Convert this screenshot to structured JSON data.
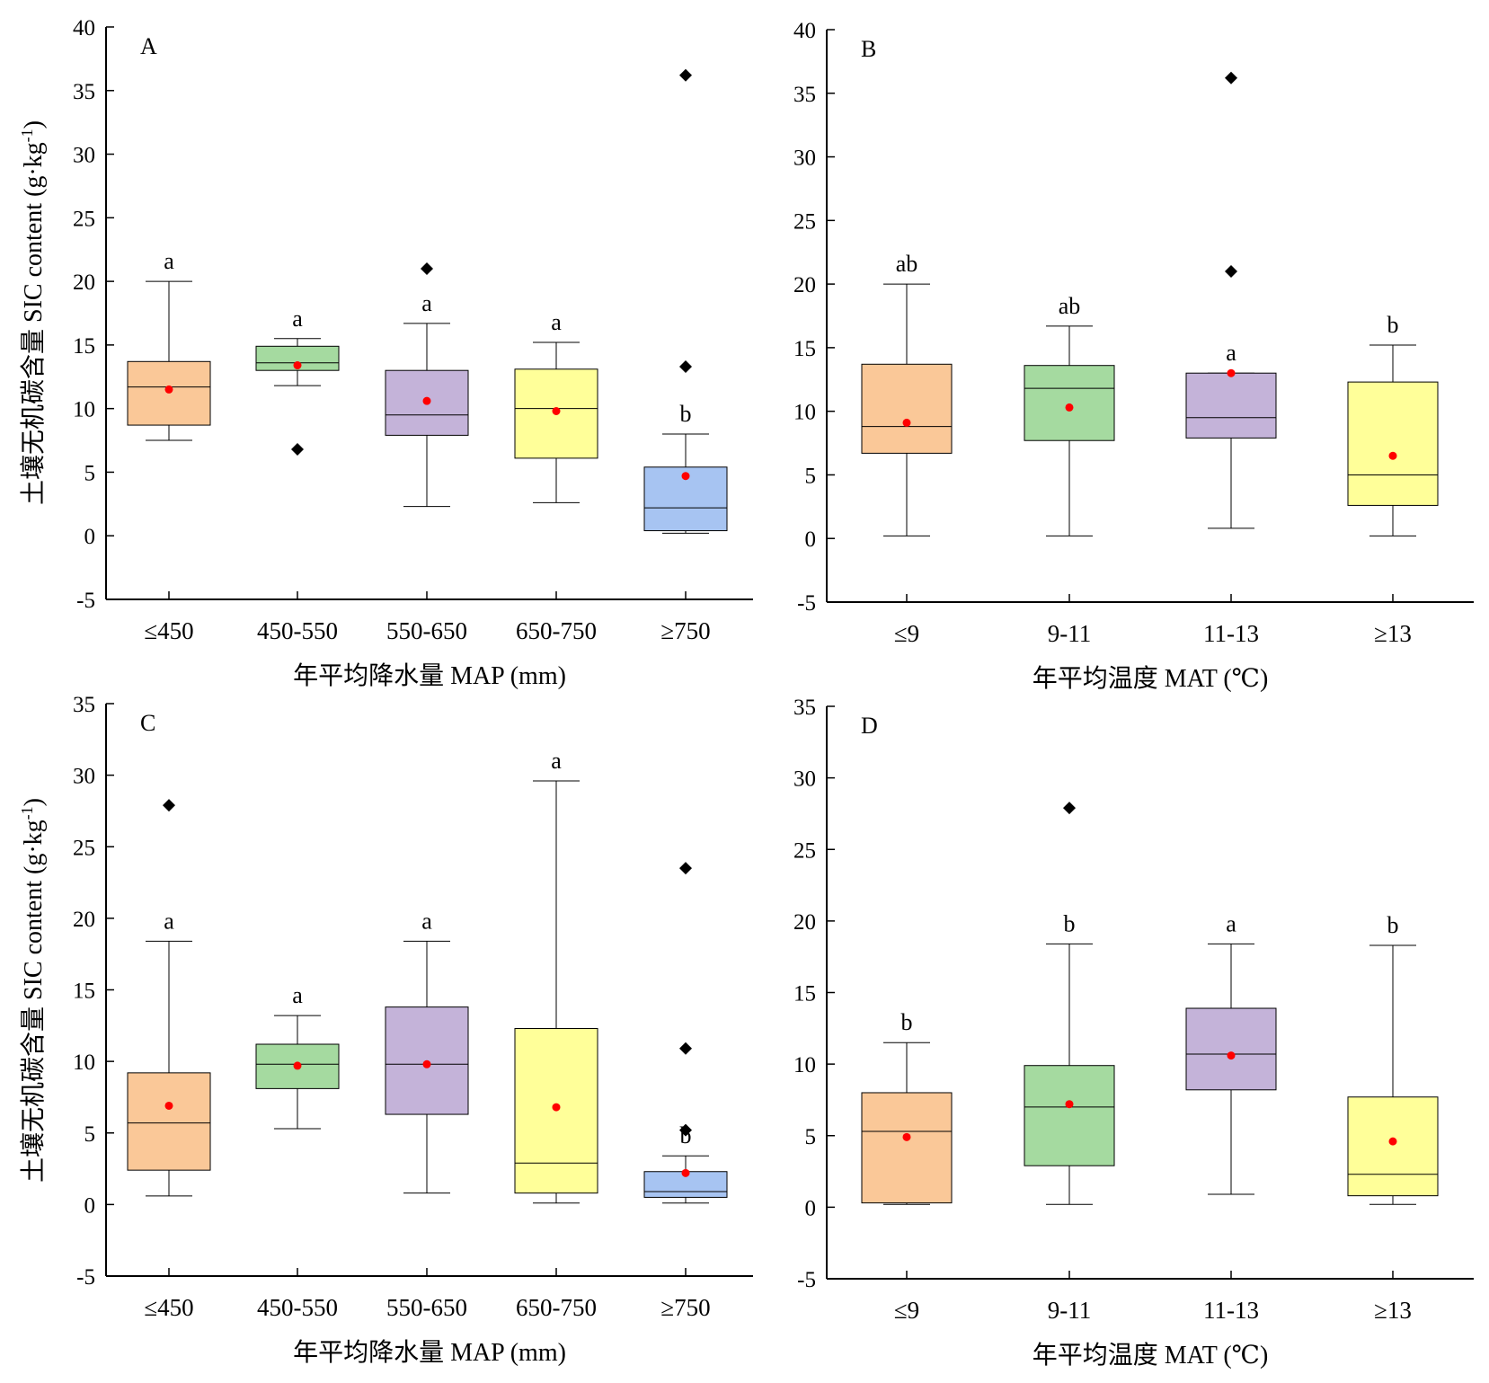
{
  "figure": {
    "y_axis_label": "土壤无机碳含量 SIC content (g·kg",
    "y_axis_label_sup": "-1",
    "y_axis_label_end": ")"
  },
  "chart_data": [
    {
      "type": "box",
      "panel_label": "A",
      "xlabel": "年平均降水量 MAP (mm)",
      "ylim": [
        -5,
        40
      ],
      "yticks": [
        -5,
        0,
        5,
        10,
        15,
        20,
        25,
        30,
        35,
        40
      ],
      "categories": [
        "≤450",
        "450-550",
        "550-650",
        "650-750",
        "≥750"
      ],
      "boxes": [
        {
          "min": 7.5,
          "q1": 8.7,
          "median": 11.7,
          "q3": 13.7,
          "max": 20.0,
          "mean": 11.5,
          "outliers": [],
          "letter": "a",
          "color": "#FAC898"
        },
        {
          "min": 11.8,
          "q1": 13.0,
          "median": 13.6,
          "q3": 14.9,
          "max": 15.5,
          "mean": 13.4,
          "outliers": [
            6.8
          ],
          "letter": "a",
          "color": "#A5DAA0"
        },
        {
          "min": 2.3,
          "q1": 7.9,
          "median": 9.5,
          "q3": 13.0,
          "max": 16.7,
          "mean": 10.6,
          "outliers": [
            21.0
          ],
          "letter": "a",
          "color": "#C4B3D9"
        },
        {
          "min": 2.6,
          "q1": 6.1,
          "median": 10.0,
          "q3": 13.1,
          "max": 15.2,
          "mean": 9.8,
          "outliers": [],
          "letter": "a",
          "color": "#FFFF99"
        },
        {
          "min": 0.2,
          "q1": 0.4,
          "median": 2.2,
          "q3": 5.4,
          "max": 8.0,
          "mean": 4.7,
          "outliers": [
            13.3,
            36.2
          ],
          "letter": "b",
          "color": "#A7C4F2"
        }
      ]
    },
    {
      "type": "box",
      "panel_label": "B",
      "xlabel": "年平均温度 MAT (℃)",
      "ylim": [
        -5,
        40
      ],
      "yticks": [
        -5,
        0,
        5,
        10,
        15,
        20,
        25,
        30,
        35,
        40
      ],
      "categories": [
        "≤9",
        "9-11",
        "11-13",
        "≥13"
      ],
      "boxes": [
        {
          "min": 0.2,
          "q1": 6.7,
          "median": 8.8,
          "q3": 13.7,
          "max": 20.0,
          "mean": 9.1,
          "outliers": [],
          "letter": "ab",
          "color": "#FAC898"
        },
        {
          "min": 0.2,
          "q1": 7.7,
          "median": 11.8,
          "q3": 13.6,
          "max": 16.7,
          "mean": 10.3,
          "outliers": [],
          "letter": "ab",
          "color": "#A5DAA0"
        },
        {
          "min": 0.8,
          "q1": 7.9,
          "median": 9.5,
          "q3": 13.0,
          "max": 13.0,
          "mean": 13.0,
          "outliers": [
            21.0,
            36.2
          ],
          "letter": "a",
          "color": "#C4B3D9"
        },
        {
          "min": 0.2,
          "q1": 2.6,
          "median": 5.0,
          "q3": 12.3,
          "max": 15.2,
          "mean": 6.5,
          "outliers": [],
          "letter": "b",
          "color": "#FFFF99"
        }
      ]
    },
    {
      "type": "box",
      "panel_label": "C",
      "xlabel": "年平均降水量 MAP (mm)",
      "ylim": [
        -5,
        35
      ],
      "yticks": [
        -5,
        0,
        5,
        10,
        15,
        20,
        25,
        30,
        35
      ],
      "categories": [
        "≤450",
        "450-550",
        "550-650",
        "650-750",
        "≥750"
      ],
      "boxes": [
        {
          "min": 0.6,
          "q1": 2.4,
          "median": 5.7,
          "q3": 9.2,
          "max": 18.4,
          "mean": 6.9,
          "outliers": [
            27.9
          ],
          "letter": "a",
          "color": "#FAC898"
        },
        {
          "min": 5.3,
          "q1": 8.1,
          "median": 9.8,
          "q3": 11.2,
          "max": 13.2,
          "mean": 9.7,
          "outliers": [],
          "letter": "a",
          "color": "#A5DAA0"
        },
        {
          "min": 0.8,
          "q1": 6.3,
          "median": 9.8,
          "q3": 13.8,
          "max": 18.4,
          "mean": 9.8,
          "outliers": [],
          "letter": "a",
          "color": "#C4B3D9"
        },
        {
          "min": 0.1,
          "q1": 0.8,
          "median": 2.9,
          "q3": 12.3,
          "max": 29.6,
          "mean": 6.8,
          "outliers": [],
          "letter": "a",
          "color": "#FFFF99"
        },
        {
          "min": 0.1,
          "q1": 0.5,
          "median": 0.9,
          "q3": 2.3,
          "max": 3.4,
          "mean": 2.2,
          "outliers": [
            5.2,
            10.9,
            23.5
          ],
          "letter": "b",
          "color": "#A7C4F2"
        }
      ]
    },
    {
      "type": "box",
      "panel_label": "D",
      "xlabel": "年平均温度 MAT (℃)",
      "ylim": [
        -5,
        35
      ],
      "yticks": [
        -5,
        0,
        5,
        10,
        15,
        20,
        25,
        30,
        35
      ],
      "categories": [
        "≤9",
        "9-11",
        "11-13",
        "≥13"
      ],
      "boxes": [
        {
          "min": 0.2,
          "q1": 0.3,
          "median": 5.3,
          "q3": 8.0,
          "max": 11.5,
          "mean": 4.9,
          "outliers": [],
          "letter": "b",
          "color": "#FAC898"
        },
        {
          "min": 0.2,
          "q1": 2.9,
          "median": 7.0,
          "q3": 9.9,
          "max": 18.4,
          "mean": 7.2,
          "outliers": [
            27.9
          ],
          "letter": "b",
          "color": "#A5DAA0"
        },
        {
          "min": 0.9,
          "q1": 8.2,
          "median": 10.7,
          "q3": 13.9,
          "max": 18.4,
          "mean": 10.6,
          "outliers": [],
          "letter": "a",
          "color": "#C4B3D9"
        },
        {
          "min": 0.2,
          "q1": 0.8,
          "median": 2.3,
          "q3": 7.7,
          "max": 18.3,
          "mean": 4.6,
          "outliers": [],
          "letter": "b",
          "color": "#FFFF99"
        }
      ]
    }
  ]
}
